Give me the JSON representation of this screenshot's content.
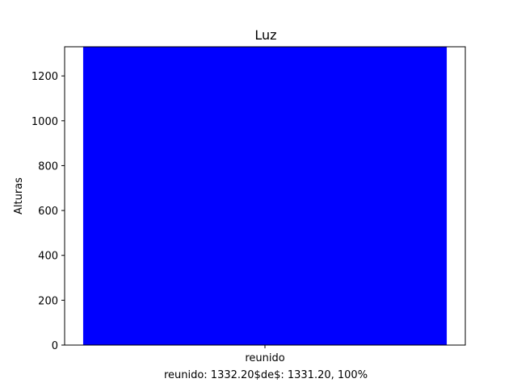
{
  "chart_data": {
    "type": "bar",
    "title": "Luz",
    "xlabel": "",
    "ylabel": "Alturas",
    "categories": [
      "reunido"
    ],
    "values": [
      1332.2
    ],
    "bar_color": "#0000ff",
    "ylim": [
      0,
      1330
    ],
    "yticks": [
      0,
      200,
      400,
      600,
      800,
      1000,
      1200
    ],
    "caption": "reunido: 1332.20$de$: 1331.20,  100%",
    "grid": false,
    "legend": "none"
  }
}
